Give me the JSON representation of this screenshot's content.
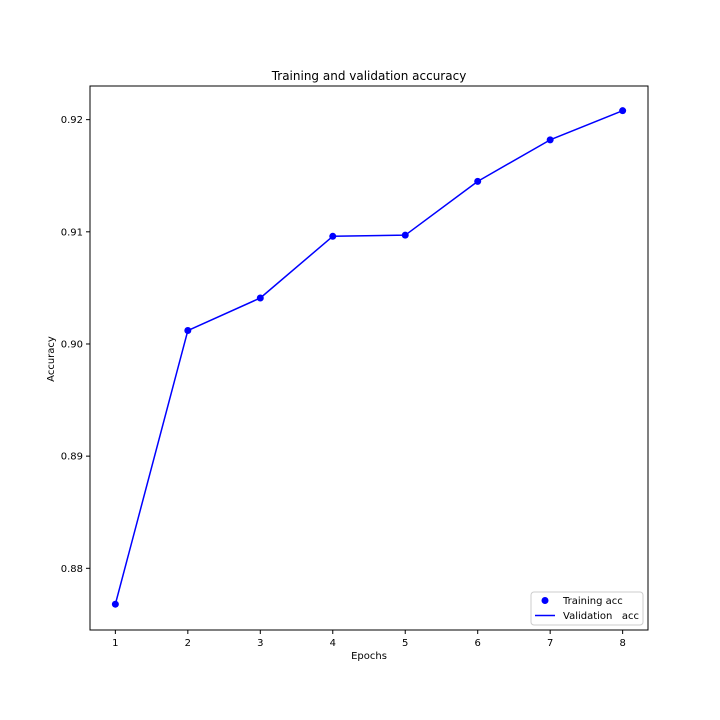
{
  "chart_data": {
    "type": "line",
    "title": "Training and validation accuracy",
    "xlabel": "Epochs",
    "ylabel": "Accuracy",
    "x": [
      1,
      2,
      3,
      4,
      5,
      6,
      7,
      8
    ],
    "xticks": [
      "1",
      "2",
      "3",
      "4",
      "5",
      "6",
      "7",
      "8"
    ],
    "yticks": [
      0.88,
      0.89,
      0.9,
      0.91,
      0.92
    ],
    "ytick_labels": [
      "0.88",
      "0.89",
      "0.90",
      "0.91",
      "0.92"
    ],
    "xlim": [
      0.65,
      8.35
    ],
    "ylim": [
      0.8745,
      0.923
    ],
    "series": [
      {
        "name": "Training acc",
        "style": "markers",
        "color": "#0000ff",
        "values": [
          0.8768,
          0.9012,
          0.9041,
          0.9096,
          0.9097,
          0.9145,
          0.9182,
          0.9208
        ]
      },
      {
        "name": "Validation   acc",
        "style": "line",
        "color": "#0000ff",
        "values": [
          0.8768,
          0.9012,
          0.9041,
          0.9096,
          0.9097,
          0.9145,
          0.9182,
          0.9208
        ]
      }
    ],
    "legend": {
      "position": "lower-right",
      "entries": [
        "Training acc",
        "Validation   acc"
      ]
    }
  }
}
